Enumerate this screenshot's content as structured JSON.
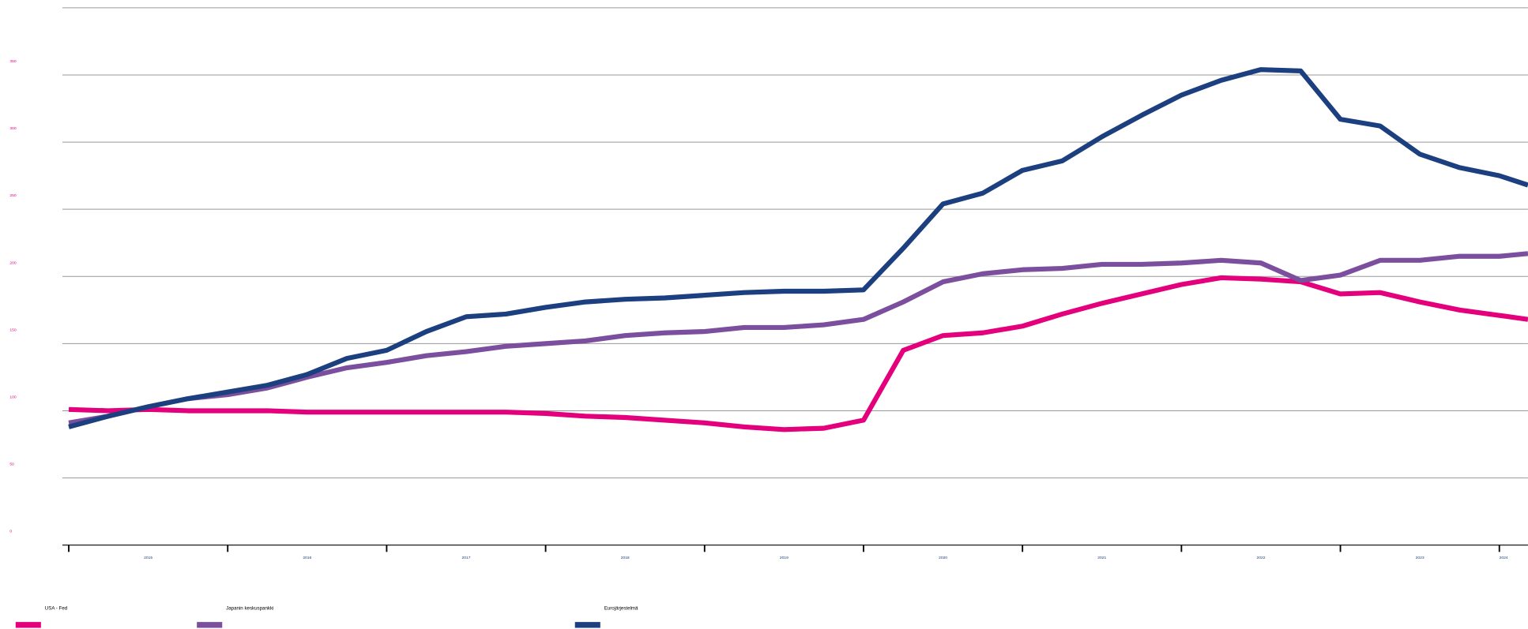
{
  "chart_data": {
    "type": "line",
    "x": [
      2015,
      2015.25,
      2015.5,
      2015.75,
      2016,
      2016.25,
      2016.5,
      2016.75,
      2017,
      2017.25,
      2017.5,
      2017.75,
      2018,
      2018.25,
      2018.5,
      2018.75,
      2019,
      2019.25,
      2019.5,
      2019.75,
      2020,
      2020.25,
      2020.5,
      2020.75,
      2021,
      2021.25,
      2021.5,
      2021.75,
      2022,
      2022.25,
      2022.5,
      2022.75,
      2023,
      2023.25,
      2023.5,
      2023.75,
      2024,
      2024.18
    ],
    "series": [
      {
        "name": "USA - Fed",
        "color": "#e4007c",
        "values": [
          101,
          100,
          101,
          100,
          100,
          100,
          99,
          99,
          99,
          99,
          99,
          99,
          98,
          96,
          95,
          93,
          91,
          88,
          86,
          87,
          93,
          145,
          156,
          158,
          163,
          172,
          180,
          187,
          194,
          199,
          198,
          196,
          187,
          188,
          181,
          175,
          171,
          168
        ]
      },
      {
        "name": "Japanin keskuspankki",
        "color": "#7b4f9e",
        "values": [
          91,
          96,
          103,
          109,
          112,
          117,
          125,
          132,
          136,
          141,
          144,
          148,
          150,
          152,
          156,
          158,
          159,
          162,
          162,
          164,
          168,
          181,
          196,
          202,
          205,
          206,
          209,
          209,
          210,
          212,
          210,
          197,
          201,
          212,
          212,
          215,
          215,
          217
        ]
      },
      {
        "name": "Eurojärjestelmä",
        "color": "#1b3f7f",
        "values": [
          88,
          96,
          103,
          109,
          114,
          119,
          127,
          139,
          145,
          159,
          170,
          172,
          177,
          181,
          183,
          184,
          186,
          188,
          189,
          189,
          190,
          221,
          254,
          262,
          279,
          286,
          304,
          320,
          335,
          346,
          354,
          353,
          317,
          312,
          291,
          281,
          275,
          268
        ]
      }
    ],
    "xlim": [
      2014.96,
      2024.18
    ],
    "xticks": [
      2015,
      2016,
      2017,
      2018,
      2019,
      2020,
      2021,
      2022,
      2023,
      2024
    ],
    "ylim": [
      0,
      400
    ],
    "yticks": [
      0,
      50,
      100,
      150,
      200,
      250,
      300,
      350
    ],
    "grid": true
  }
}
